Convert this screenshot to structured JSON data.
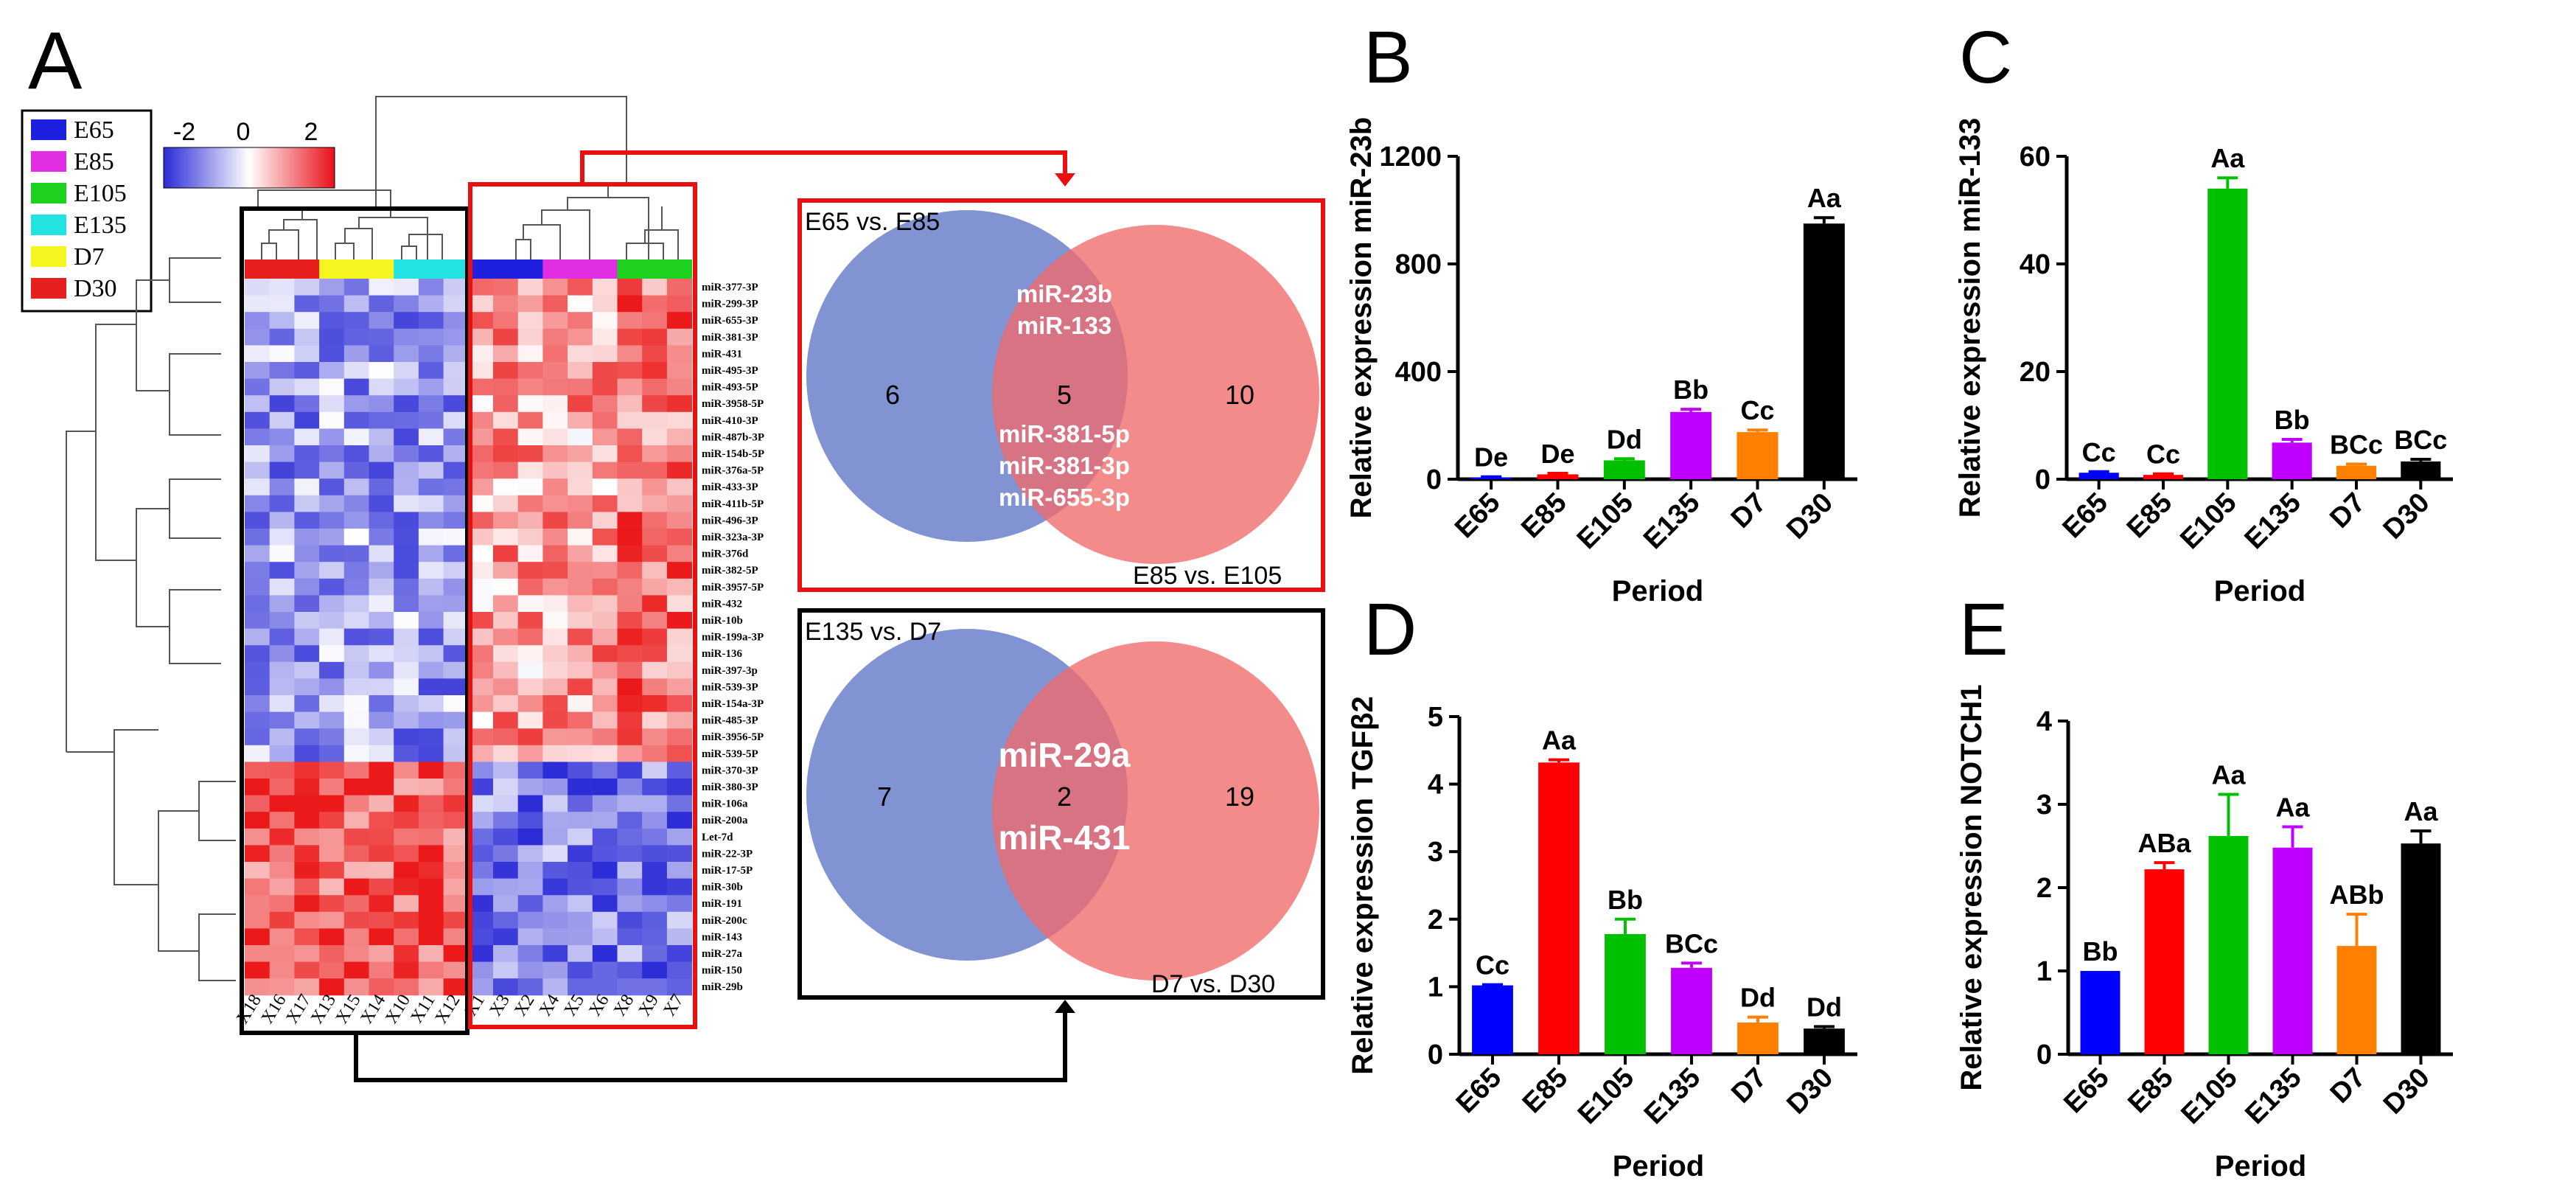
{
  "panel_letters": {
    "a": "A",
    "b": "B",
    "c": "C",
    "d": "D",
    "e": "E"
  },
  "legend": {
    "groups": [
      {
        "label": "E65",
        "color": "#1f1fe0"
      },
      {
        "label": "E85",
        "color": "#e22ee2"
      },
      {
        "label": "E105",
        "color": "#1fd11f"
      },
      {
        "label": "E135",
        "color": "#22e2e2"
      },
      {
        "label": "D7",
        "color": "#f5f51f"
      },
      {
        "label": "D30",
        "color": "#e81f1f"
      }
    ],
    "scale": {
      "min": "-2",
      "mid": "0",
      "max": "2",
      "low_color": "#2b2bd6",
      "mid_color": "#ffffff",
      "high_color": "#e8101a"
    }
  },
  "heatmap": {
    "column_color_bar": [
      "#e81f1f",
      "#e81f1f",
      "#e81f1f",
      "#f5f51f",
      "#f5f51f",
      "#f5f51f",
      "#22e2e2",
      "#22e2e2",
      "#22e2e2",
      "#1f1fe0",
      "#1f1fe0",
      "#1f1fe0",
      "#e22ee2",
      "#e22ee2",
      "#e22ee2",
      "#1fd11f",
      "#1fd11f",
      "#1fd11f"
    ],
    "column_labels": [
      "X18",
      "X16",
      "X17",
      "X13",
      "X15",
      "X14",
      "X10",
      "X11",
      "X12",
      "X1",
      "X3",
      "X2",
      "X4",
      "X5",
      "X6",
      "X8",
      "X9",
      "X7"
    ],
    "row_labels": [
      "miR-377-3P",
      "miR-299-3P",
      "miR-655-3P",
      "miR-381-3P",
      "miR-431",
      "miR-495-3P",
      "miR-493-5P",
      "miR-3958-5P",
      "miR-410-3P",
      "miR-487b-3P",
      "miR-154b-5P",
      "miR-376a-5P",
      "miR-433-3P",
      "miR-411b-5P",
      "miR-496-3P",
      "miR-323a-3P",
      "miR-376d",
      "miR-382-5P",
      "miR-3957-5P",
      "miR-432",
      "miR-10b",
      "miR-199a-3P",
      "miR-136",
      "miR-397-3p",
      "miR-539-3P",
      "miR-154a-3P",
      "miR-485-3P",
      "miR-3956-5P",
      "miR-539-5P",
      "miR-370-3P",
      "miR-380-3P",
      "miR-106a",
      "miR-200a",
      "Let-7d",
      "miR-22-3P",
      "miR-17-5P",
      "miR-30b",
      "miR-191",
      "miR-200c",
      "miR-143",
      "miR-27a",
      "miR-150",
      "miR-29b"
    ],
    "n_upper_rows": 29
  },
  "venn_top": {
    "left_label": "E65 vs. E85",
    "right_label": "E85 vs. E105",
    "left_only": "6",
    "shared": "5",
    "right_only": "10",
    "shared_top_items": [
      "miR-23b",
      "miR-133"
    ],
    "shared_bottom_items": [
      "miR-381-5p",
      "miR-381-3p",
      "miR-655-3p"
    ]
  },
  "venn_bottom": {
    "left_label": "E135 vs. D7",
    "right_label": "D7 vs. D30",
    "left_only": "7",
    "shared": "2",
    "right_only": "19",
    "shared_top_items": [
      "miR-29a"
    ],
    "shared_bottom_items": [
      "miR-431"
    ]
  },
  "chart_data": [
    {
      "panel": "B",
      "type": "bar",
      "categories": [
        "E65",
        "E85",
        "E105",
        "E135",
        "D7",
        "D30"
      ],
      "values": [
        6,
        18,
        70,
        250,
        175,
        950
      ],
      "errors": [
        3,
        4,
        6,
        10,
        8,
        22
      ],
      "labels": [
        "De",
        "De",
        "Dd",
        "Bb",
        "Cc",
        "Aa"
      ],
      "colors": [
        "#0000ff",
        "#ff0000",
        "#00c000",
        "#c000ff",
        "#ff8000",
        "#000000"
      ],
      "xlabel": "Period",
      "ylabel": "Relative expression miR-23b",
      "ylim": [
        0,
        1200
      ],
      "yticks": [
        "0",
        "400",
        "800",
        "1200"
      ]
    },
    {
      "panel": "C",
      "type": "bar",
      "categories": [
        "E65",
        "E85",
        "E105",
        "E135",
        "D7",
        "D30"
      ],
      "values": [
        1.2,
        0.8,
        54,
        6.8,
        2.5,
        3.3
      ],
      "errors": [
        0.2,
        0.2,
        2,
        0.6,
        0.3,
        0.4
      ],
      "labels": [
        "Cc",
        "Cc",
        "Aa",
        "Bb",
        "BCc",
        "BCc"
      ],
      "colors": [
        "#0000ff",
        "#ff0000",
        "#00c000",
        "#c000ff",
        "#ff8000",
        "#000000"
      ],
      "xlabel": "Period",
      "ylabel": "Relative expression miR-133",
      "ylim": [
        0,
        60
      ],
      "yticks": [
        "0",
        "20",
        "40",
        "60"
      ]
    },
    {
      "panel": "D",
      "type": "bar",
      "categories": [
        "E65",
        "E85",
        "E105",
        "E135",
        "D7",
        "D30"
      ],
      "values": [
        1.02,
        4.32,
        1.78,
        1.28,
        0.47,
        0.38
      ],
      "errors": [
        0.01,
        0.04,
        0.22,
        0.07,
        0.08,
        0.03
      ],
      "labels": [
        "Cc",
        "Aa",
        "Bb",
        "BCc",
        "Dd",
        "Dd"
      ],
      "colors": [
        "#0000ff",
        "#ff0000",
        "#00c000",
        "#c000ff",
        "#ff8000",
        "#000000"
      ],
      "xlabel": "Period",
      "ylabel": "Relative expression TGFβ2",
      "ylim": [
        0,
        5
      ],
      "yticks": [
        "0",
        "1",
        "2",
        "3",
        "4",
        "5"
      ]
    },
    {
      "panel": "E",
      "type": "bar",
      "categories": [
        "E65",
        "E85",
        "E105",
        "E135",
        "D7",
        "D30"
      ],
      "values": [
        1.0,
        2.22,
        2.62,
        2.48,
        1.3,
        2.53
      ],
      "errors": [
        0,
        0.08,
        0.5,
        0.25,
        0.38,
        0.15
      ],
      "labels": [
        "Bb",
        "ABa",
        "Aa",
        "Aa",
        "ABb",
        "Aa"
      ],
      "colors": [
        "#0000ff",
        "#ff0000",
        "#00c000",
        "#c000ff",
        "#ff8000",
        "#000000"
      ],
      "xlabel": "Period",
      "ylabel": "Relative expression NOTCH1",
      "ylim": [
        0,
        4
      ],
      "yticks": [
        "0",
        "1",
        "2",
        "3",
        "4"
      ]
    }
  ]
}
